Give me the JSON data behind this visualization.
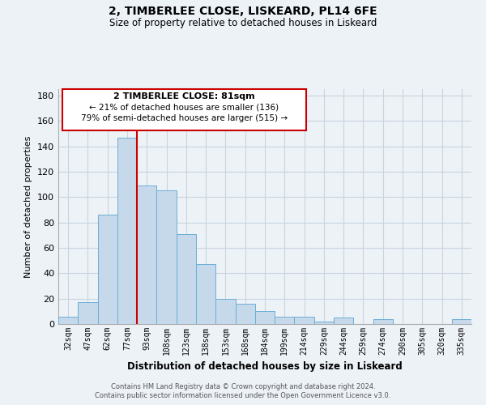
{
  "title": "2, TIMBERLEE CLOSE, LISKEARD, PL14 6FE",
  "subtitle": "Size of property relative to detached houses in Liskeard",
  "xlabel": "Distribution of detached houses by size in Liskeard",
  "ylabel": "Number of detached properties",
  "bar_labels": [
    "32sqm",
    "47sqm",
    "62sqm",
    "77sqm",
    "93sqm",
    "108sqm",
    "123sqm",
    "138sqm",
    "153sqm",
    "168sqm",
    "184sqm",
    "199sqm",
    "214sqm",
    "229sqm",
    "244sqm",
    "259sqm",
    "274sqm",
    "290sqm",
    "305sqm",
    "320sqm",
    "335sqm"
  ],
  "bar_values": [
    6,
    17,
    86,
    147,
    109,
    105,
    71,
    47,
    20,
    16,
    10,
    6,
    6,
    2,
    5,
    0,
    4,
    0,
    0,
    0,
    4
  ],
  "bar_color": "#c6d9ea",
  "bar_edge_color": "#6baed6",
  "vline_x": 3.5,
  "vline_color": "#cc0000",
  "ylim": [
    0,
    185
  ],
  "yticks": [
    0,
    20,
    40,
    60,
    80,
    100,
    120,
    140,
    160,
    180
  ],
  "annotation_title": "2 TIMBERLEE CLOSE: 81sqm",
  "annotation_line1": "← 21% of detached houses are smaller (136)",
  "annotation_line2": "79% of semi-detached houses are larger (515) →",
  "annotation_box_color": "#ffffff",
  "annotation_box_edge": "#cc0000",
  "footer_line1": "Contains HM Land Registry data © Crown copyright and database right 2024.",
  "footer_line2": "Contains public sector information licensed under the Open Government Licence v3.0.",
  "bg_color": "#edf2f7",
  "plot_bg_color": "#edf2f7",
  "grid_color": "#c8d4e0"
}
